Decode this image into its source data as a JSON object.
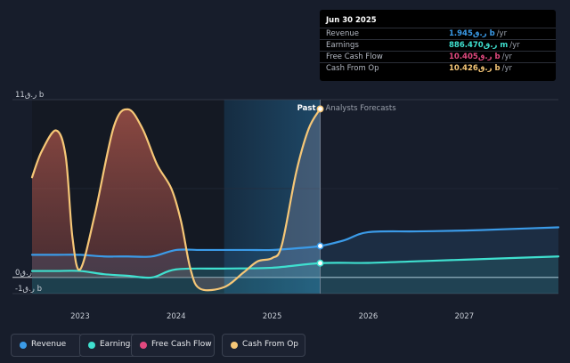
{
  "chart_data": {
    "type": "area",
    "x_unit": "year",
    "y_unit": "ر.ق b",
    "ylim": [
      -1,
      11
    ],
    "y_ticks": [
      {
        "value": 11,
        "label": "11ر.ق b"
      },
      {
        "value": 0,
        "label": "0ر.ق"
      },
      {
        "value": -1,
        "label": "-1ر.ق b"
      }
    ],
    "x_ticks": [
      {
        "value": 2023,
        "label": "2023"
      },
      {
        "value": 2024,
        "label": "2024"
      },
      {
        "value": 2025,
        "label": "2025"
      },
      {
        "value": 2026,
        "label": "2026"
      },
      {
        "value": 2027,
        "label": "2027"
      }
    ],
    "divider_date": 2025.5,
    "past_label": "Past",
    "forecast_label": "Analysts Forecasts",
    "series": [
      {
        "name": "Revenue",
        "color": "#3b9be8",
        "points": [
          [
            2022.5,
            1.4
          ],
          [
            2022.75,
            1.4
          ],
          [
            2023.0,
            1.4
          ],
          [
            2023.25,
            1.3
          ],
          [
            2023.5,
            1.3
          ],
          [
            2023.75,
            1.3
          ],
          [
            2024.0,
            1.7
          ],
          [
            2024.25,
            1.7
          ],
          [
            2024.5,
            1.7
          ],
          [
            2024.75,
            1.7
          ],
          [
            2025.0,
            1.7
          ],
          [
            2025.25,
            1.8
          ],
          [
            2025.5,
            1.945
          ],
          [
            2025.75,
            2.3
          ],
          [
            2026.0,
            2.8
          ],
          [
            2026.5,
            2.85
          ],
          [
            2027.0,
            2.9
          ],
          [
            2027.5,
            3.0
          ],
          [
            2027.98,
            3.1
          ]
        ]
      },
      {
        "name": "Earnings",
        "color": "#3fe0cf",
        "points": [
          [
            2022.5,
            0.4
          ],
          [
            2022.75,
            0.4
          ],
          [
            2023.0,
            0.4
          ],
          [
            2023.25,
            0.2
          ],
          [
            2023.5,
            0.1
          ],
          [
            2023.75,
            0.0
          ],
          [
            2024.0,
            0.5
          ],
          [
            2024.5,
            0.55
          ],
          [
            2025.0,
            0.6
          ],
          [
            2025.5,
            0.886
          ],
          [
            2026.0,
            0.9
          ],
          [
            2026.5,
            1.0
          ],
          [
            2027.0,
            1.1
          ],
          [
            2027.5,
            1.2
          ],
          [
            2027.98,
            1.3
          ]
        ]
      },
      {
        "name": "Free Cash Flow",
        "color": "#e2497f",
        "points": [
          [
            2025.5,
            10.405
          ]
        ]
      },
      {
        "name": "Cash From Op",
        "color": "#f6c777",
        "points": [
          [
            2022.5,
            6.2
          ],
          [
            2022.6,
            7.8
          ],
          [
            2022.75,
            9.1
          ],
          [
            2022.85,
            7.5
          ],
          [
            2022.92,
            2.5
          ],
          [
            2023.0,
            0.5
          ],
          [
            2023.15,
            3.8
          ],
          [
            2023.35,
            9.3
          ],
          [
            2023.5,
            10.4
          ],
          [
            2023.65,
            9.2
          ],
          [
            2023.8,
            7.0
          ],
          [
            2023.95,
            5.5
          ],
          [
            2024.05,
            3.5
          ],
          [
            2024.15,
            0.5
          ],
          [
            2024.25,
            -0.7
          ],
          [
            2024.5,
            -0.6
          ],
          [
            2024.7,
            0.3
          ],
          [
            2024.85,
            1.0
          ],
          [
            2025.0,
            1.2
          ],
          [
            2025.1,
            2.0
          ],
          [
            2025.25,
            6.5
          ],
          [
            2025.38,
            9.2
          ],
          [
            2025.5,
            10.426
          ]
        ]
      }
    ]
  },
  "tooltip": {
    "date": "Jun 30 2025",
    "rows": [
      {
        "label": "Revenue",
        "value": "1.945ر.ق b",
        "unit": "/yr",
        "color": "#3b9be8"
      },
      {
        "label": "Earnings",
        "value": "886.470ر.ق m",
        "unit": "/yr",
        "color": "#3fe0cf"
      },
      {
        "label": "Free Cash Flow",
        "value": "10.405ر.ق b",
        "unit": "/yr",
        "color": "#e2497f"
      },
      {
        "label": "Cash From Op",
        "value": "10.426ر.ق b",
        "unit": "/yr",
        "color": "#f6c777"
      }
    ]
  },
  "legend": [
    {
      "label": "Revenue",
      "color": "#3b9be8"
    },
    {
      "label": "Earnings",
      "color": "#3fe0cf"
    },
    {
      "label": "Free Cash Flow",
      "color": "#e2497f"
    },
    {
      "label": "Cash From Op",
      "color": "#f6c777"
    }
  ]
}
